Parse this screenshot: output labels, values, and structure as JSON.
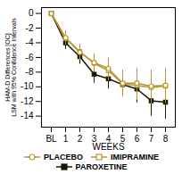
{
  "chart_data": {
    "type": "line",
    "xlabel": "WEEKS",
    "ylabel": "HAM-D Differences [OC]\nLSM with 95% Confidence Intervals",
    "categories": [
      "BL",
      "1",
      "2",
      "3",
      "4",
      "5",
      "6",
      "7",
      "8"
    ],
    "series": [
      {
        "name": "PLACEBO",
        "color": "#B8962E",
        "marker": "circle-open",
        "values": [
          0,
          -3.3,
          -5.3,
          -6.7,
          -7.5,
          -9.5,
          -9.5,
          -9.9,
          -9.8
        ],
        "errors": [
          0,
          0.9,
          1.1,
          1.2,
          1.4,
          1.8,
          2.0,
          2.2,
          2.3
        ]
      },
      {
        "name": "IMIPRAMINE",
        "color": "#B8962E",
        "marker": "square-open",
        "values": [
          0,
          -3.4,
          -5.2,
          -6.8,
          -7.8,
          -9.6,
          -9.8,
          -10.1,
          -9.9
        ],
        "errors": [
          0,
          0.9,
          1.0,
          1.2,
          1.4,
          1.7,
          2.0,
          2.2,
          2.4
        ]
      },
      {
        "name": "PAROXETINE",
        "color": "#1a1600",
        "marker": "square",
        "values": [
          0,
          -4.0,
          -5.9,
          -8.3,
          -8.9,
          -9.7,
          -10.3,
          -11.9,
          -12.1
        ],
        "errors": [
          0,
          0.9,
          1.0,
          1.2,
          1.4,
          1.6,
          1.9,
          2.1,
          2.3
        ]
      }
    ],
    "ylim": [
      -15.5,
      0.8
    ],
    "yticks": [
      0,
      -2,
      -4,
      -6,
      -8,
      -10,
      -12,
      -14
    ],
    "legend": "bottom",
    "grid": false
  }
}
